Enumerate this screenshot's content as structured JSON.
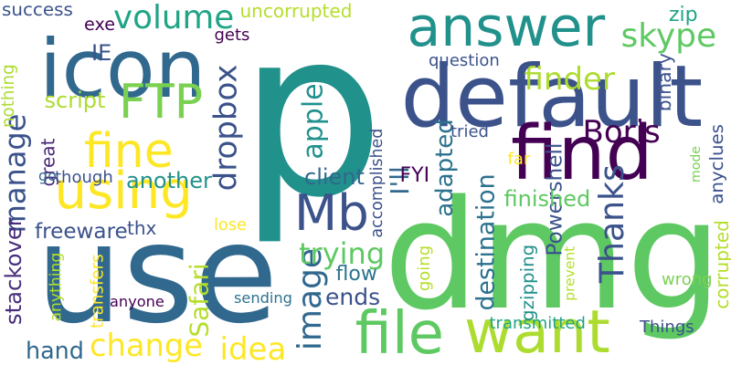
{
  "words": [
    {
      "text": "p",
      "color": "#21918c"
    },
    {
      "text": "use",
      "color": "#31688e"
    },
    {
      "text": "dmg",
      "color": "#5ec962"
    },
    {
      "text": "default",
      "color": "#3b528b"
    },
    {
      "text": "find",
      "color": "#440154"
    },
    {
      "text": "answer",
      "color": "#21918c"
    },
    {
      "text": "icon",
      "color": "#31688e"
    },
    {
      "text": "want",
      "color": "#addc30"
    },
    {
      "text": "file",
      "color": "#5ec962"
    },
    {
      "text": "Mb",
      "color": "#3b528b"
    },
    {
      "text": "using",
      "color": "#fde725"
    },
    {
      "text": "fine",
      "color": "#fde725"
    },
    {
      "text": "FTP",
      "color": "#7ad151"
    },
    {
      "text": "Thanks",
      "color": "#3b528b"
    },
    {
      "text": "image",
      "color": "#31688e"
    },
    {
      "text": "dropbox",
      "color": "#3b528b"
    },
    {
      "text": "manage",
      "color": "#3b528b"
    },
    {
      "text": "Boris",
      "color": "#440154"
    },
    {
      "text": "destination",
      "color": "#2c728e"
    },
    {
      "text": "volume",
      "color": "#20a486"
    },
    {
      "text": "skype",
      "color": "#5ec962"
    },
    {
      "text": "finder",
      "color": "#addc30"
    },
    {
      "text": "change",
      "color": "#fde725"
    },
    {
      "text": "idea",
      "color": "#fde725"
    },
    {
      "text": "apple",
      "color": "#21918c"
    },
    {
      "text": "Safari",
      "color": "#b5de2b"
    },
    {
      "text": "trying",
      "color": "#5ec962"
    },
    {
      "text": "I'll",
      "color": "#31688e"
    },
    {
      "text": "Powershell",
      "color": "#3b528b"
    },
    {
      "text": "ends",
      "color": "#3b528b"
    },
    {
      "text": "hand",
      "color": "#31688e"
    },
    {
      "text": "freeware",
      "color": "#3b528b"
    },
    {
      "text": "script",
      "color": "#addc30"
    },
    {
      "text": "client",
      "color": "#31688e"
    },
    {
      "text": "adapted",
      "color": "#2c728e"
    },
    {
      "text": "finished",
      "color": "#5ec962"
    },
    {
      "text": "another",
      "color": "#21918c"
    },
    {
      "text": "stackover",
      "color": "#472c7a"
    },
    {
      "text": "flow",
      "color": "#2c728e"
    },
    {
      "text": "success",
      "color": "#3b528b"
    },
    {
      "text": "exe",
      "color": "#440154"
    },
    {
      "text": "IE",
      "color": "#3b528b"
    },
    {
      "text": "uncorrupted",
      "color": "#b5de2b"
    },
    {
      "text": "zip",
      "color": "#20a486"
    },
    {
      "text": "question",
      "color": "#3b528b"
    },
    {
      "text": "gets",
      "color": "#440154"
    },
    {
      "text": "great",
      "color": "#482878"
    },
    {
      "text": "thx",
      "color": "#3b528b"
    },
    {
      "text": "lose",
      "color": "#fde725"
    },
    {
      "text": "though",
      "color": "#3b528b"
    },
    {
      "text": "FYI",
      "color": "#440154"
    },
    {
      "text": "tried",
      "color": "#3b528b"
    },
    {
      "text": "far",
      "color": "#fde725"
    },
    {
      "text": "mode",
      "color": "#7ad151"
    },
    {
      "text": "anyclues",
      "color": "#3b528b"
    },
    {
      "text": "binary",
      "color": "#3b528b"
    },
    {
      "text": "accomplished",
      "color": "#3b528b"
    },
    {
      "text": "sending",
      "color": "#2c728e"
    },
    {
      "text": "anyone",
      "color": "#440154"
    },
    {
      "text": "transmitted",
      "color": "#20a486"
    },
    {
      "text": "Things",
      "color": "#3b528b"
    },
    {
      "text": "wrong",
      "color": "#7ad151"
    },
    {
      "text": "corrupted",
      "color": "#b5de2b"
    },
    {
      "text": "prevent",
      "color": "#b5de2b"
    },
    {
      "text": "gzipping",
      "color": "#21918c"
    },
    {
      "text": "going",
      "color": "#b5de2b"
    },
    {
      "text": "transfers",
      "color": "#fde725"
    },
    {
      "text": "anything",
      "color": "#b5de2b"
    },
    {
      "text": "nothing",
      "color": "#addc30"
    },
    {
      "text": "go",
      "color": "#31688e"
    }
  ]
}
